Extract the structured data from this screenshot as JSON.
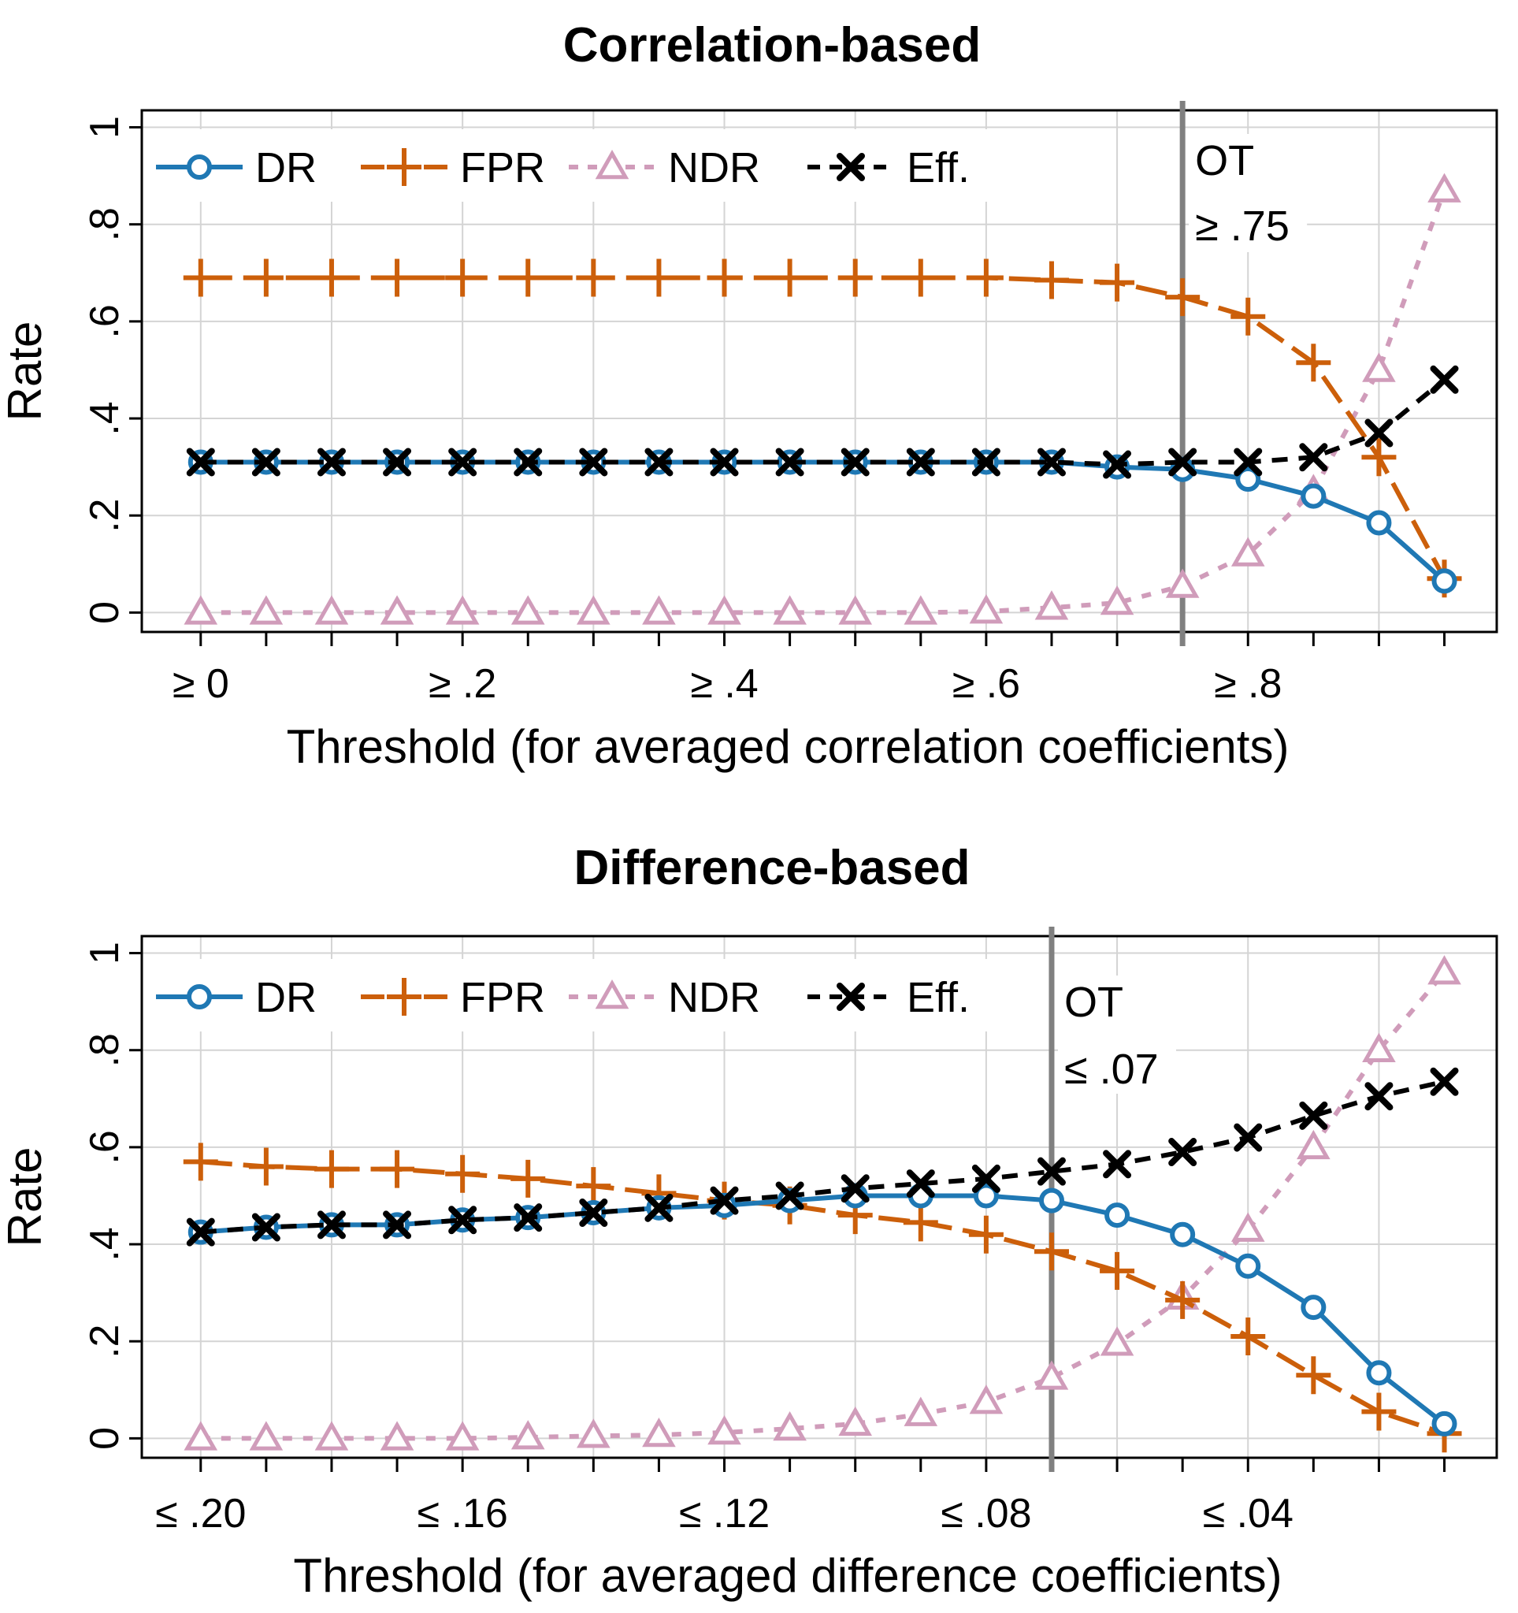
{
  "colors": {
    "DR": "#1f78b4",
    "FPR": "#cc5f0a",
    "NDR": "#d09cba",
    "Eff": "#000000",
    "grid": "#d4d4d4",
    "ot_line": "#808080"
  },
  "chart_data": [
    {
      "type": "line",
      "title": "Correlation-based",
      "xlabel": "Threshold (for averaged correlation coefficients)",
      "ylabel": "Rate",
      "ylim": [
        0,
        1
      ],
      "yticks": [
        {
          "value": 0,
          "label": "0"
        },
        {
          "value": 0.2,
          "label": ".2"
        },
        {
          "value": 0.4,
          "label": ".4"
        },
        {
          "value": 0.6,
          "label": ".6"
        },
        {
          "value": 0.8,
          "label": ".8"
        },
        {
          "value": 1,
          "label": "1"
        }
      ],
      "x": [
        0,
        0.05,
        0.1,
        0.15,
        0.2,
        0.25,
        0.3,
        0.35,
        0.4,
        0.45,
        0.5,
        0.55,
        0.6,
        0.65,
        0.7,
        0.75,
        0.8,
        0.85,
        0.9,
        0.95
      ],
      "xlim": [
        -0.045,
        0.99
      ],
      "xticks": [
        {
          "value": 0,
          "label": "≥ 0"
        },
        {
          "value": 0.2,
          "label": "≥ .2"
        },
        {
          "value": 0.4,
          "label": "≥ .4"
        },
        {
          "value": 0.6,
          "label": "≥ .6"
        },
        {
          "value": 0.8,
          "label": "≥ .8"
        }
      ],
      "grid": true,
      "legend": {
        "position": "top-left",
        "entries": [
          "DR",
          "FPR",
          "NDR",
          "Eff."
        ]
      },
      "ot": {
        "value": 0.75,
        "label_top": "OT",
        "label_bottom": "≥ .75"
      },
      "series": [
        {
          "name": "DR",
          "key": "DR",
          "values": [
            0.31,
            0.31,
            0.31,
            0.31,
            0.31,
            0.31,
            0.31,
            0.31,
            0.31,
            0.31,
            0.31,
            0.31,
            0.31,
            0.31,
            0.3,
            0.295,
            0.275,
            0.24,
            0.185,
            0.065
          ]
        },
        {
          "name": "FPR",
          "key": "FPR",
          "values": [
            0.69,
            0.69,
            0.69,
            0.69,
            0.69,
            0.69,
            0.69,
            0.69,
            0.69,
            0.69,
            0.69,
            0.69,
            0.69,
            0.685,
            0.68,
            0.65,
            0.61,
            0.515,
            0.32,
            0.07
          ]
        },
        {
          "name": "NDR",
          "key": "NDR",
          "values": [
            0.0,
            0.0,
            0.0,
            0.0,
            0.0,
            0.0,
            0.0,
            0.0,
            0.0,
            0.0,
            0.0,
            0.0,
            0.002,
            0.01,
            0.02,
            0.055,
            0.12,
            0.25,
            0.5,
            0.87
          ]
        },
        {
          "name": "Eff.",
          "key": "Eff",
          "values": [
            0.31,
            0.31,
            0.31,
            0.31,
            0.31,
            0.31,
            0.31,
            0.31,
            0.31,
            0.31,
            0.31,
            0.31,
            0.31,
            0.31,
            0.305,
            0.31,
            0.31,
            0.32,
            0.37,
            0.48
          ]
        }
      ]
    },
    {
      "type": "line",
      "title": "Difference-based",
      "xlabel": "Threshold (for averaged difference coefficients)",
      "ylabel": "Rate",
      "ylim": [
        0,
        1
      ],
      "yticks": [
        {
          "value": 0,
          "label": "0"
        },
        {
          "value": 0.2,
          "label": ".2"
        },
        {
          "value": 0.4,
          "label": ".4"
        },
        {
          "value": 0.6,
          "label": ".6"
        },
        {
          "value": 0.8,
          "label": ".8"
        },
        {
          "value": 1,
          "label": "1"
        }
      ],
      "x": [
        0.2,
        0.19,
        0.18,
        0.17,
        0.16,
        0.15,
        0.14,
        0.13,
        0.12,
        0.11,
        0.1,
        0.09,
        0.08,
        0.07,
        0.06,
        0.05,
        0.04,
        0.03,
        0.02,
        0.01
      ],
      "xlim": [
        0.209,
        0.002
      ],
      "xticks": [
        {
          "value": 0.2,
          "label": "≤ .20"
        },
        {
          "value": 0.16,
          "label": "≤ .16"
        },
        {
          "value": 0.12,
          "label": "≤ .12"
        },
        {
          "value": 0.08,
          "label": "≤ .08"
        },
        {
          "value": 0.04,
          "label": "≤ .04"
        }
      ],
      "grid": true,
      "legend": {
        "position": "top-left",
        "entries": [
          "DR",
          "FPR",
          "NDR",
          "Eff."
        ]
      },
      "ot": {
        "value": 0.07,
        "label_top": "OT",
        "label_bottom": "≤ .07"
      },
      "series": [
        {
          "name": "DR",
          "key": "DR",
          "values": [
            0.425,
            0.435,
            0.44,
            0.44,
            0.45,
            0.455,
            0.465,
            0.475,
            0.48,
            0.49,
            0.5,
            0.5,
            0.5,
            0.49,
            0.46,
            0.42,
            0.355,
            0.27,
            0.135,
            0.03
          ]
        },
        {
          "name": "FPR",
          "key": "FPR",
          "values": [
            0.57,
            0.56,
            0.555,
            0.555,
            0.545,
            0.535,
            0.52,
            0.505,
            0.49,
            0.48,
            0.46,
            0.445,
            0.42,
            0.385,
            0.345,
            0.285,
            0.21,
            0.13,
            0.055,
            0.01
          ]
        },
        {
          "name": "NDR",
          "key": "NDR",
          "values": [
            0.0,
            0.0,
            0.0,
            0.0,
            0.0,
            0.002,
            0.005,
            0.007,
            0.012,
            0.02,
            0.03,
            0.05,
            0.075,
            0.125,
            0.195,
            0.29,
            0.43,
            0.6,
            0.8,
            0.96
          ]
        },
        {
          "name": "Eff.",
          "key": "Eff",
          "values": [
            0.425,
            0.435,
            0.44,
            0.44,
            0.45,
            0.455,
            0.465,
            0.475,
            0.49,
            0.5,
            0.515,
            0.525,
            0.535,
            0.55,
            0.565,
            0.59,
            0.62,
            0.665,
            0.705,
            0.735
          ]
        }
      ]
    }
  ]
}
